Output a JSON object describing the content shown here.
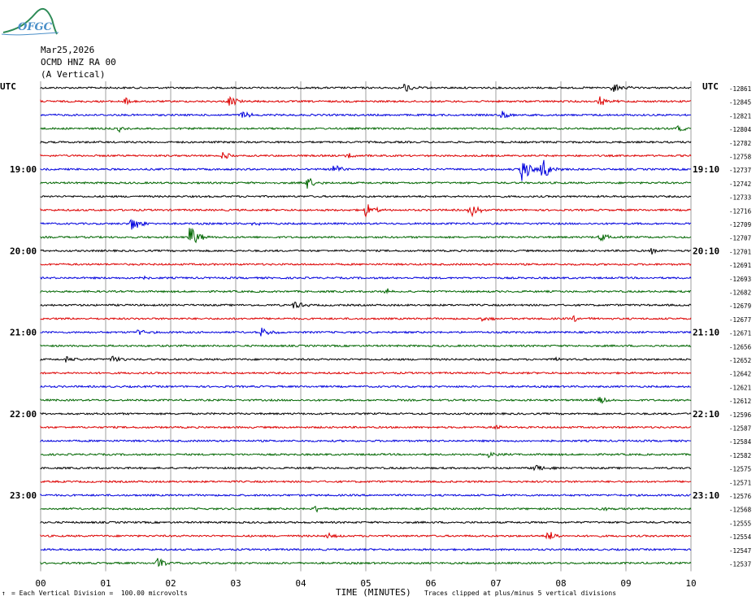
{
  "logo_text": "OFGC",
  "header": {
    "date": "Mar25,2026",
    "station": "OCMD HNZ RA 00",
    "component": "(A Vertical)"
  },
  "left_axis_label": "UTC",
  "right_axis_label": "UTC",
  "footer": {
    "scale_prefix": "↑",
    "scale_note": "= Each Vertical Division =  100.00 microvolts",
    "xlabel": "TIME (MINUTES)",
    "clip_note": "Traces clipped at plus/minus 5 vertical divisions"
  },
  "colors": {
    "trace_cycle": [
      "#000000",
      "#dd0000",
      "#0000dd",
      "#006600"
    ],
    "grid": "#888888"
  },
  "chart_data": {
    "type": "line",
    "title": "",
    "xlabel": "TIME (MINUTES)",
    "xlim": [
      0,
      10
    ],
    "x_ticks": [
      "00",
      "01",
      "02",
      "03",
      "04",
      "05",
      "06",
      "07",
      "08",
      "09",
      "10"
    ],
    "trace_count": 36,
    "trace_minutes": 10,
    "left_time_labels": [
      {
        "trace": 6,
        "label": "19:00"
      },
      {
        "trace": 12,
        "label": "20:00"
      },
      {
        "trace": 18,
        "label": "21:00"
      },
      {
        "trace": 24,
        "label": "22:00"
      },
      {
        "trace": 30,
        "label": "23:00"
      }
    ],
    "right_time_labels": [
      {
        "trace": 6,
        "label": "19:10"
      },
      {
        "trace": 12,
        "label": "20:10"
      },
      {
        "trace": 18,
        "label": "21:10"
      },
      {
        "trace": 24,
        "label": "22:10"
      },
      {
        "trace": 30,
        "label": "23:10"
      }
    ],
    "trace_offsets": [
      "-12861",
      "-12845",
      "-12821",
      "-12804",
      "-12782",
      "-12758",
      "-12737",
      "-12742",
      "-12733",
      "-12716",
      "-12709",
      "-12707",
      "-12701",
      "-12691",
      "-12693",
      "-12682",
      "-12679",
      "-12677",
      "-12671",
      "-12656",
      "-12652",
      "-12642",
      "-12621",
      "-12612",
      "-12596",
      "-12587",
      "-12584",
      "-12582",
      "-12575",
      "-12571",
      "-12576",
      "-12568",
      "-12555",
      "-12554",
      "-12547",
      "-12537"
    ],
    "events": [
      {
        "trace": 0,
        "minute": 5.6,
        "amp": 7
      },
      {
        "trace": 0,
        "minute": 8.8,
        "amp": 8
      },
      {
        "trace": 1,
        "minute": 1.3,
        "amp": 5
      },
      {
        "trace": 1,
        "minute": 2.9,
        "amp": 6
      },
      {
        "trace": 1,
        "minute": 8.6,
        "amp": 6
      },
      {
        "trace": 2,
        "minute": 3.1,
        "amp": 5
      },
      {
        "trace": 2,
        "minute": 7.1,
        "amp": 6
      },
      {
        "trace": 3,
        "minute": 1.2,
        "amp": 4
      },
      {
        "trace": 3,
        "minute": 9.8,
        "amp": 4
      },
      {
        "trace": 5,
        "minute": 2.8,
        "amp": 5
      },
      {
        "trace": 5,
        "minute": 4.7,
        "amp": 5
      },
      {
        "trace": 6,
        "minute": 4.5,
        "amp": 7
      },
      {
        "trace": 6,
        "minute": 7.4,
        "amp": 18
      },
      {
        "trace": 6,
        "minute": 7.7,
        "amp": 16
      },
      {
        "trace": 7,
        "minute": 4.1,
        "amp": 8
      },
      {
        "trace": 9,
        "minute": 5.0,
        "amp": 10
      },
      {
        "trace": 9,
        "minute": 6.6,
        "amp": 9
      },
      {
        "trace": 10,
        "minute": 1.4,
        "amp": 10
      },
      {
        "trace": 10,
        "minute": 3.2,
        "amp": 5
      },
      {
        "trace": 11,
        "minute": 2.3,
        "amp": 16
      },
      {
        "trace": 11,
        "minute": 8.6,
        "amp": 7
      },
      {
        "trace": 12,
        "minute": 9.4,
        "amp": 4
      },
      {
        "trace": 14,
        "minute": 1.5,
        "amp": 4
      },
      {
        "trace": 15,
        "minute": 5.3,
        "amp": 4
      },
      {
        "trace": 16,
        "minute": 3.9,
        "amp": 6
      },
      {
        "trace": 17,
        "minute": 6.8,
        "amp": 4
      },
      {
        "trace": 17,
        "minute": 8.2,
        "amp": 4
      },
      {
        "trace": 18,
        "minute": 3.4,
        "amp": 7
      },
      {
        "trace": 18,
        "minute": 1.5,
        "amp": 4
      },
      {
        "trace": 20,
        "minute": 0.4,
        "amp": 4
      },
      {
        "trace": 20,
        "minute": 1.1,
        "amp": 5
      },
      {
        "trace": 20,
        "minute": 7.9,
        "amp": 4
      },
      {
        "trace": 23,
        "minute": 8.6,
        "amp": 5
      },
      {
        "trace": 25,
        "minute": 7.0,
        "amp": 4
      },
      {
        "trace": 27,
        "minute": 6.9,
        "amp": 5
      },
      {
        "trace": 28,
        "minute": 7.6,
        "amp": 6
      },
      {
        "trace": 31,
        "minute": 4.2,
        "amp": 5
      },
      {
        "trace": 31,
        "minute": 8.6,
        "amp": 4
      },
      {
        "trace": 33,
        "minute": 4.4,
        "amp": 4
      },
      {
        "trace": 33,
        "minute": 7.8,
        "amp": 7
      },
      {
        "trace": 35,
        "minute": 1.8,
        "amp": 7
      }
    ]
  }
}
